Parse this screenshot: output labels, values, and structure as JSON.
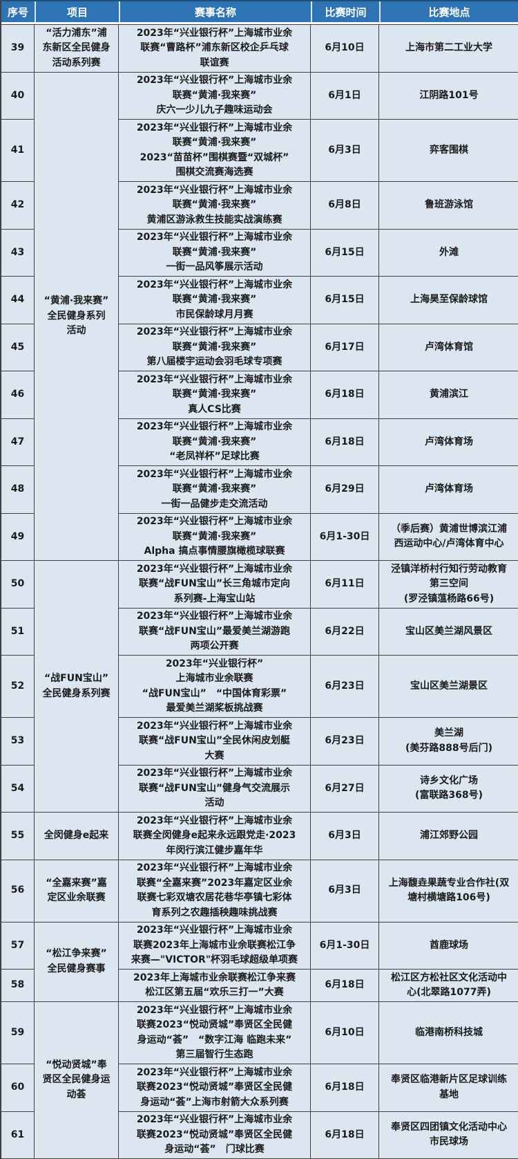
{
  "colors": {
    "header_bg": "#2E74B5",
    "header_text": "#FFFFFF",
    "header_top": "#1F4E79",
    "header_sep": "#D9E8F5",
    "body_bg": "#DCE6F1",
    "border": "#404040",
    "text": "#1A1A1A"
  },
  "table": {
    "columns": [
      {
        "key": "seq",
        "label": "序号"
      },
      {
        "key": "project",
        "label": "项目"
      },
      {
        "key": "event",
        "label": "赛事名称"
      },
      {
        "key": "time",
        "label": "比赛时间"
      },
      {
        "key": "location",
        "label": "比赛地点"
      }
    ],
    "rows": [
      {
        "no": "39",
        "project": {
          "label": "“活力浦东”浦\n东新区全民健身\n活动系列赛",
          "span": 1
        },
        "event": "2023年“兴业银行杯”上海城市业余\n联赛“曹路杯”浦东新区校企乒乓球\n联谊赛",
        "time": "6月10日",
        "location": "上海市第二工业大学"
      },
      {
        "no": "40",
        "project": {
          "label": "“黄浦·我来赛”\n全民健身系列\n活动",
          "span": 10
        },
        "event": "2023年“兴业银行杯”上海城市业余\n联赛“黄浦·我来赛”\n庆六一少儿九子趣味运动会",
        "time": "6月1日",
        "location": "江阴路101号"
      },
      {
        "no": "41",
        "event": "2023年“兴业银行杯”上海城市业余\n联赛“黄浦·我来赛”\n2023“苗苗杯”围棋赛暨“双城杯”\n围棋交流赛海选赛",
        "time": "6月3日",
        "location": "弈客围棋"
      },
      {
        "no": "42",
        "event": "2023年“兴业银行杯”上海城市业余\n联赛“黄浦·我来赛”\n黄浦区游泳救生技能实战演练赛",
        "time": "6月8日",
        "location": "鲁班游泳馆"
      },
      {
        "no": "43",
        "event": "2023年“兴业银行杯”上海城市业余\n联赛“黄浦·我来赛”\n一街一品风筝展示活动",
        "time": "6月15日",
        "location": "外滩"
      },
      {
        "no": "44",
        "event": "2023年“兴业银行杯”上海城市业余\n联赛“黄浦·我来赛”\n市民保龄球月月赛",
        "time": "6月15日",
        "location": "上海昊至保龄球馆"
      },
      {
        "no": "45",
        "event": "2023年“兴业银行杯”上海城市业余\n联赛“黄浦·我来赛”\n第八届楼宇运动会羽毛球专项赛",
        "time": "6月17日",
        "location": "卢湾体育馆"
      },
      {
        "no": "46",
        "event": "2023年“兴业银行杯”上海城市业余\n联赛“黄浦·我来赛”\n真人CS比赛",
        "time": "6月18日",
        "location": "黄浦滨江"
      },
      {
        "no": "47",
        "event": "2023年“兴业银行杯”上海城市业余\n联赛“黄浦·我来赛”\n“老凤祥杯”足球比赛",
        "time": "6月18日",
        "location": "卢湾体育场"
      },
      {
        "no": "48",
        "event": "2023年“兴业银行杯”上海城市业余\n联赛“黄浦·我来赛”\n一街一品健步走交流活动",
        "time": "6月29日",
        "location": "卢湾体育场"
      },
      {
        "no": "49",
        "event": "2023年“兴业银行杯”上海城市业余\n联赛“黄浦·我来赛”\nAlpha 搞点事情腰旗橄榄球联赛",
        "time": "6月1-30日",
        "location": "（季后赛）黄浦世博滨江浦\n西运动中心/卢湾体育中心"
      },
      {
        "no": "50",
        "project": {
          "label": "“战FUN宝山”\n全民健身系列赛",
          "span": 5
        },
        "event": "2023年“兴业银行杯”上海城市业余\n联赛“战FUN宝山”长三角城市定向\n系列赛-上海宝山站",
        "time": "6月11日",
        "location": "泾镇洋桥村行知行劳动教育\n第三空间\n(罗泾镇蕰杨路66号)"
      },
      {
        "no": "51",
        "event": "2023年“兴业银行杯”上海城市业余\n联赛“战FUN宝山”最爱美兰湖游跑\n两项公开赛",
        "time": "6月22日",
        "location": "宝山区美兰湖风景区"
      },
      {
        "no": "52",
        "event": "2023年“兴业银行杯”\n上海城市业余联赛\n“战FUN宝山”　“中国体育彩票”\n最爱美兰湖桨板挑战赛",
        "time": "6月23日",
        "location": "宝山区美兰湖景区"
      },
      {
        "no": "53",
        "event": "2023年“兴业银行杯”上海城市业余\n联赛“战FUN宝山”全民休闲皮划艇\n大赛",
        "time": "6月23日",
        "location": "美兰湖\n(美芬路888号后门)"
      },
      {
        "no": "54",
        "event": "2023年“兴业银行杯”上海城市业余\n联赛“战FUN宝山”健身气交流展示\n活动",
        "time": "6月27日",
        "location": "诗乡文化广场\n(富联路368号)"
      },
      {
        "no": "55",
        "project": {
          "label": "全闵健身e起来",
          "span": 1
        },
        "event": "2023年“兴业银行杯”上海城市业余\n联赛全闵健身e起来永远跟党走·2023\n年闵行滨江健步嘉年华",
        "time": "6月3日",
        "location": "浦江郊野公园"
      },
      {
        "no": "56",
        "project": {
          "label": "“全嘉来赛”嘉\n定区业余联赛",
          "span": 1
        },
        "event": "2023年“兴业银行杯”上海城市业余\n联赛“全嘉来赛”2023年嘉定区业余\n联赛七彩双塘农居花巷华亭镇七彩体\n育系列之农趣插秧趣味挑战赛",
        "time": "6月3日",
        "location": "上海馥垚果蔬专业合作社(双\n塘村横塘路106号)"
      },
      {
        "no": "57",
        "project": {
          "label": "“松江争来赛”\n全民健身赛事",
          "span": 2
        },
        "event": "2023年“兴业银行杯”上海城市业余\n联赛2023年上海城市业余联赛松江争\n来赛—\"VICTOR\"杯羽毛球超级单项赛",
        "time": "6月1-30日",
        "location": "酋鹿球场"
      },
      {
        "no": "58",
        "event": "2023年上海城市业余联赛松江争来赛\n松江区第五届“欢乐三打一”大赛",
        "time": "6月18日",
        "location": "松江区方松社区文化活动中\n心(北翠路1077弄)"
      },
      {
        "no": "59",
        "project": {
          "label": "“悦动贤城”奉\n贤区全民健身运\n动荟",
          "span": 3
        },
        "event": "2023年“兴业银行杯”上海城市业余\n联赛2023“悦动贤城”奉贤区全民健\n身运动“荟”　“数字江海 临跑未来”\n第三届智行生态跑",
        "time": "6月10日",
        "location": "临港南桥科技城"
      },
      {
        "no": "60",
        "event": "2023年“兴业银行杯”上海城市业余\n联赛2023“悦动贤城”奉贤区全民健\n身运动“荟”上海市射箭大众系列赛",
        "time": "6月18日",
        "location": "奉贤区临港新片区足球训练\n基地"
      },
      {
        "no": "61",
        "event": "2023年“兴业银行杯”上海城市业余\n联赛2023“悦动贤城”奉贤区全民健\n身运动“荟”　门球比赛",
        "time": "6月18日",
        "location": "奉贤区四团镇文化活动中心\n市民球场"
      }
    ]
  }
}
